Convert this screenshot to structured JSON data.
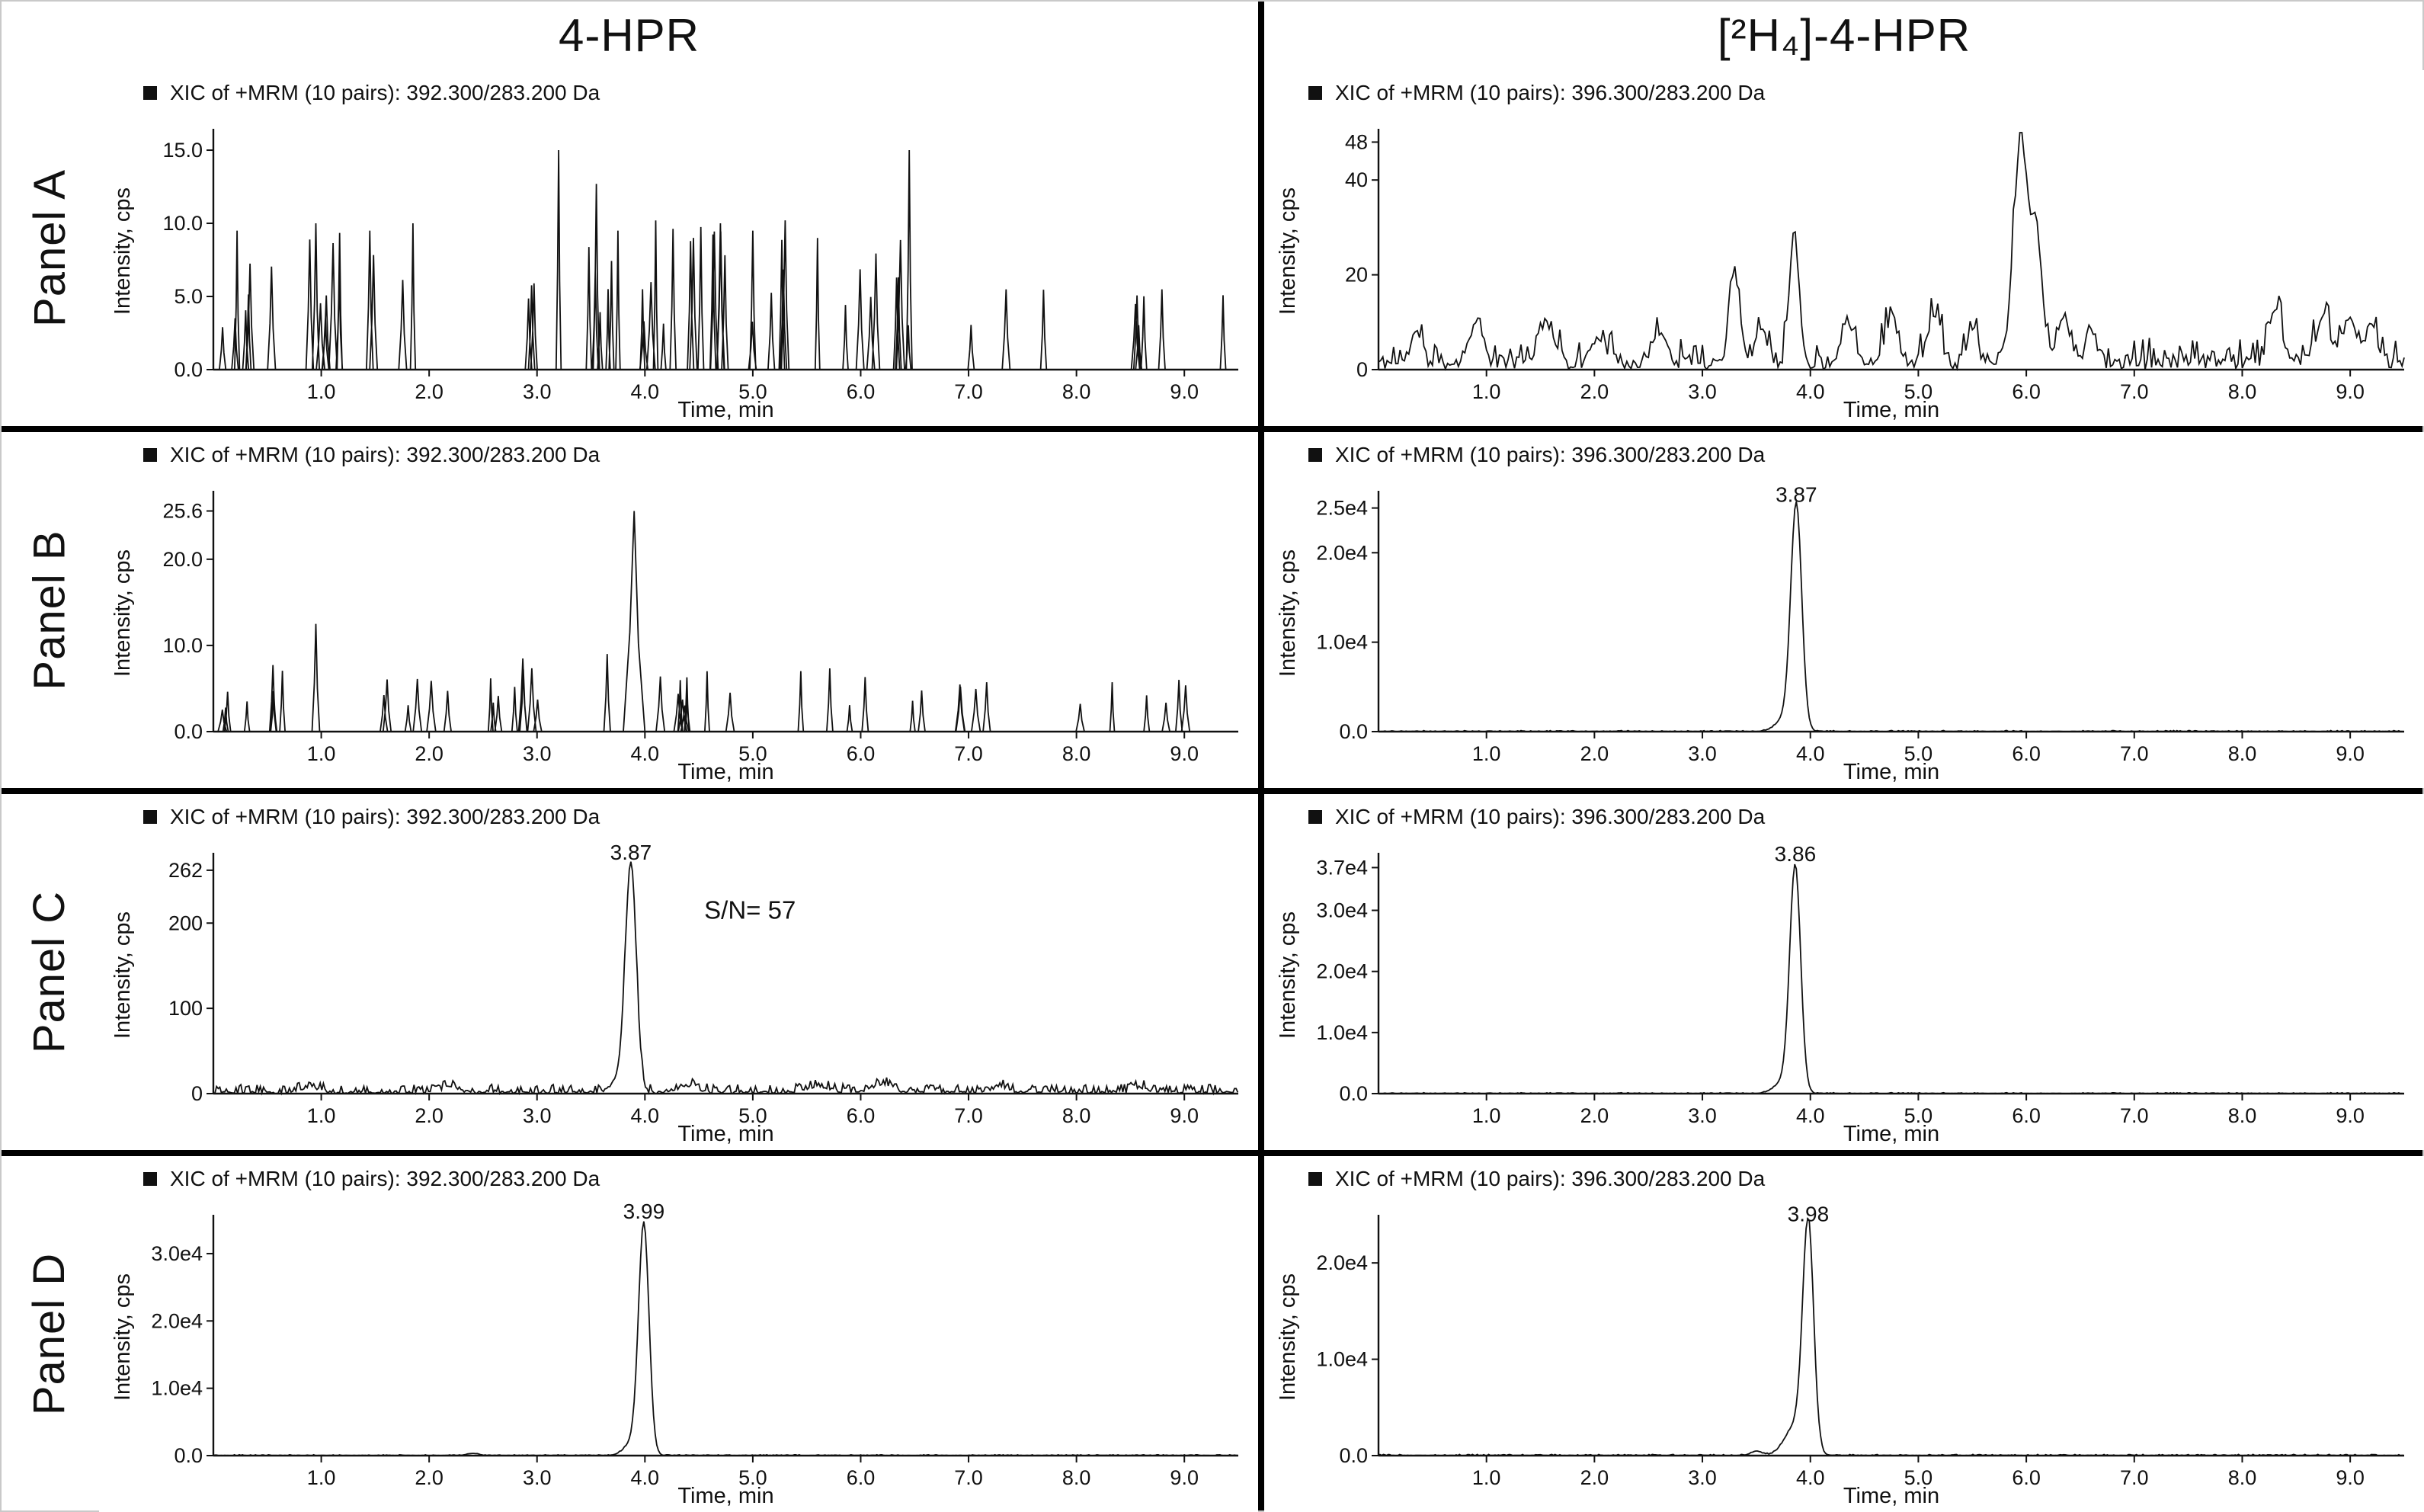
{
  "figure": {
    "columns": [
      "4-HPR",
      "[²H₄]-4-HPR"
    ],
    "panel_labels": [
      "Panel A",
      "Panel B",
      "Panel C",
      "Panel D"
    ],
    "trace_color": "#111111",
    "divider_color": "#000000"
  },
  "chart_data": [
    {
      "panel": "Panel A",
      "column": "4-HPR",
      "type": "line",
      "title": "XIC of +MRM (10 pairs): 392.300/283.200 Da",
      "xlabel": "Time, min",
      "ylabel": "Intensity, cps",
      "xlim": [
        0,
        9.5
      ],
      "ylim": [
        0,
        16.2
      ],
      "x_ticks": {
        "values": [
          1,
          2,
          3,
          4,
          5,
          6,
          7,
          8,
          9
        ],
        "labels": [
          "1.0",
          "2.0",
          "3.0",
          "4.0",
          "5.0",
          "6.0",
          "7.0",
          "8.0",
          "9.0"
        ]
      },
      "y_ticks": {
        "values": [
          0,
          5,
          10,
          15
        ],
        "labels": [
          "0.0",
          "5.0",
          "10.0",
          "15.0"
        ]
      },
      "trace": {
        "kind": "spikes",
        "seed": 7,
        "default_width": 0.028,
        "segments": [
          {
            "x0": 0.08,
            "x1": 0.55,
            "count": 6,
            "hmin": 2.5,
            "hmax": 9
          },
          {
            "x0": 0.8,
            "x1": 2.05,
            "count": 9,
            "hmin": 2.5,
            "hmax": 9.5
          },
          {
            "x0": 2.7,
            "x1": 3.1,
            "count": 3,
            "hmin": 3,
            "hmax": 6
          },
          {
            "x0": 3.3,
            "x1": 5.35,
            "count": 20,
            "hmin": 3,
            "hmax": 10
          },
          {
            "x0": 5.5,
            "x1": 6.65,
            "count": 8,
            "hmin": 3,
            "hmax": 9
          },
          {
            "x0": 7.0,
            "x1": 9.5,
            "count": 9,
            "hmin": 3,
            "hmax": 5.5
          }
        ],
        "majors": [
          [
            0.22,
            9.5
          ],
          [
            0.95,
            10
          ],
          [
            1.45,
            9.5
          ],
          [
            1.85,
            10
          ],
          [
            3.2,
            15
          ],
          [
            3.55,
            12.7
          ],
          [
            3.75,
            9.5
          ],
          [
            4.1,
            10.2
          ],
          [
            4.45,
            9
          ],
          [
            4.7,
            10
          ],
          [
            5.0,
            9.5
          ],
          [
            5.3,
            10.2
          ],
          [
            5.6,
            9
          ],
          [
            6.45,
            15
          ]
        ]
      },
      "peak_labels": [],
      "annotations": []
    },
    {
      "panel": "Panel A",
      "column": "[²H₄]-4-HPR",
      "type": "line",
      "title": "XIC of +MRM (10 pairs): 396.300/283.200 Da",
      "xlabel": "Time, min",
      "ylabel": "Intensity, cps",
      "xlim": [
        0,
        9.5
      ],
      "ylim": [
        0,
        50
      ],
      "x_ticks": {
        "values": [
          1,
          2,
          3,
          4,
          5,
          6,
          7,
          8,
          9
        ],
        "labels": [
          "1.0",
          "2.0",
          "3.0",
          "4.0",
          "5.0",
          "6.0",
          "7.0",
          "8.0",
          "9.0"
        ]
      },
      "y_ticks": {
        "values": [
          0,
          20,
          40,
          48
        ],
        "labels": [
          "0",
          "20",
          "40",
          "48"
        ]
      },
      "trace": {
        "kind": "noisy",
        "seed": 11,
        "noise": 7,
        "step": 0.02,
        "bumps": [
          [
            0.35,
            6,
            0.05
          ],
          [
            0.9,
            9,
            0.06
          ],
          [
            1.55,
            9,
            0.07
          ],
          [
            2.05,
            6,
            0.06
          ],
          [
            2.6,
            7,
            0.06
          ],
          [
            3.3,
            19,
            0.05
          ],
          [
            3.55,
            8,
            0.05
          ],
          [
            3.85,
            27,
            0.045
          ],
          [
            4.35,
            9,
            0.06
          ],
          [
            4.75,
            10,
            0.06
          ],
          [
            5.15,
            10,
            0.06
          ],
          [
            5.5,
            8,
            0.05
          ],
          [
            5.95,
            46,
            0.07
          ],
          [
            6.1,
            25,
            0.05
          ],
          [
            6.35,
            10,
            0.06
          ],
          [
            6.6,
            7,
            0.05
          ],
          [
            8.3,
            12,
            0.06
          ],
          [
            8.75,
            9,
            0.07
          ],
          [
            9.0,
            10,
            0.06
          ],
          [
            9.2,
            8,
            0.05
          ]
        ]
      },
      "peak_labels": [],
      "annotations": []
    },
    {
      "panel": "Panel B",
      "column": "4-HPR",
      "type": "line",
      "title": "XIC of +MRM (10 pairs): 392.300/283.200 Da",
      "xlabel": "Time, min",
      "ylabel": "Intensity, cps",
      "xlim": [
        0,
        9.5
      ],
      "ylim": [
        0,
        27.5
      ],
      "x_ticks": {
        "values": [
          1,
          2,
          3,
          4,
          5,
          6,
          7,
          8,
          9
        ],
        "labels": [
          "1.0",
          "2.0",
          "3.0",
          "4.0",
          "5.0",
          "6.0",
          "7.0",
          "8.0",
          "9.0"
        ]
      },
      "y_ticks": {
        "values": [
          0,
          10,
          20,
          25.6
        ],
        "labels": [
          "0.0",
          "10.0",
          "20.0",
          "25.6"
        ]
      },
      "trace": {
        "kind": "spikes",
        "seed": 13,
        "default_width": 0.03,
        "segments": [
          {
            "x0": 0.05,
            "x1": 0.95,
            "count": 8,
            "hmin": 2.5,
            "hmax": 8.5
          },
          {
            "x0": 1.5,
            "x1": 2.4,
            "count": 6,
            "hmin": 2.5,
            "hmax": 8
          },
          {
            "x0": 2.55,
            "x1": 3.65,
            "count": 8,
            "hmin": 3,
            "hmax": 9
          },
          {
            "x0": 4.05,
            "x1": 6.05,
            "count": 13,
            "hmin": 2.5,
            "hmax": 7.5
          },
          {
            "x0": 6.2,
            "x1": 7.55,
            "count": 6,
            "hmin": 2.5,
            "hmax": 6
          },
          {
            "x0": 7.9,
            "x1": 9.1,
            "count": 5,
            "hmin": 3,
            "hmax": 6
          }
        ],
        "majors": [
          [
            0.95,
            12.5,
            0.035
          ],
          [
            3.9,
            25.6,
            0.1
          ],
          [
            3.65,
            9,
            0.03
          ],
          [
            8.95,
            6,
            0.03
          ]
        ]
      },
      "peak_labels": [],
      "annotations": []
    },
    {
      "panel": "Panel B",
      "column": "[²H₄]-4-HPR",
      "type": "line",
      "title": "XIC of +MRM (10 pairs): 396.300/283.200 Da",
      "xlabel": "Time, min",
      "ylabel": "Intensity, cps",
      "xlim": [
        0,
        9.5
      ],
      "ylim": [
        0,
        26500
      ],
      "x_ticks": {
        "values": [
          1,
          2,
          3,
          4,
          5,
          6,
          7,
          8,
          9
        ],
        "labels": [
          "1.0",
          "2.0",
          "3.0",
          "4.0",
          "5.0",
          "6.0",
          "7.0",
          "8.0",
          "9.0"
        ]
      },
      "y_ticks": {
        "values": [
          0,
          10000,
          20000,
          25000
        ],
        "labels": [
          "0.0",
          "1.0e4",
          "2.0e4",
          "2.5e4"
        ]
      },
      "trace": {
        "kind": "peaks",
        "seed": 3,
        "noise": 120,
        "step": 0.015,
        "gaussians": [
          [
            3.87,
            24500,
            0.05
          ],
          [
            3.79,
            1800,
            0.09
          ]
        ]
      },
      "peak_labels": [
        {
          "x": 3.87,
          "y": 24500,
          "label": "3.87"
        }
      ],
      "annotations": []
    },
    {
      "panel": "Panel C",
      "column": "4-HPR",
      "type": "line",
      "title": "XIC of +MRM (10 pairs): 392.300/283.200 Da",
      "xlabel": "Time, min",
      "ylabel": "Intensity, cps",
      "xlim": [
        0,
        9.5
      ],
      "ylim": [
        0,
        278
      ],
      "x_ticks": {
        "values": [
          1,
          2,
          3,
          4,
          5,
          6,
          7,
          8,
          9
        ],
        "labels": [
          "1.0",
          "2.0",
          "3.0",
          "4.0",
          "5.0",
          "6.0",
          "7.0",
          "8.0",
          "9.0"
        ]
      },
      "y_ticks": {
        "values": [
          0,
          100,
          200,
          262
        ],
        "labels": [
          "0",
          "100",
          "200",
          "262"
        ]
      },
      "trace": {
        "kind": "peaks",
        "seed": 17,
        "noise": 11,
        "step": 0.015,
        "gaussians": [
          [
            3.87,
            262,
            0.05
          ],
          [
            3.78,
            18,
            0.08
          ],
          [
            0.9,
            6,
            0.08
          ],
          [
            2.2,
            7,
            0.07
          ],
          [
            4.4,
            8,
            0.09
          ],
          [
            5.6,
            7,
            0.1
          ],
          [
            6.2,
            10,
            0.09
          ],
          [
            7.3,
            6,
            0.07
          ],
          [
            8.6,
            5,
            0.07
          ]
        ]
      },
      "peak_labels": [
        {
          "x": 3.87,
          "y": 262,
          "label": "3.87"
        }
      ],
      "annotations": [
        {
          "x": 4.55,
          "y": 205,
          "label": "S/N= 57"
        }
      ]
    },
    {
      "panel": "Panel C",
      "column": "[²H₄]-4-HPR",
      "type": "line",
      "title": "XIC of +MRM (10 pairs): 396.300/283.200 Da",
      "xlabel": "Time, min",
      "ylabel": "Intensity, cps",
      "xlim": [
        0,
        9.5
      ],
      "ylim": [
        0,
        38800
      ],
      "x_ticks": {
        "values": [
          1,
          2,
          3,
          4,
          5,
          6,
          7,
          8,
          9
        ],
        "labels": [
          "1.0",
          "2.0",
          "3.0",
          "4.0",
          "5.0",
          "6.0",
          "7.0",
          "8.0",
          "9.0"
        ]
      },
      "y_ticks": {
        "values": [
          0,
          10000,
          20000,
          30000,
          37000
        ],
        "labels": [
          "0.0",
          "1.0e4",
          "2.0e4",
          "3.0e4",
          "3.7e4"
        ]
      },
      "trace": {
        "kind": "peaks",
        "seed": 3,
        "noise": 150,
        "step": 0.015,
        "gaussians": [
          [
            3.86,
            36300,
            0.05
          ],
          [
            3.77,
            2200,
            0.09
          ]
        ]
      },
      "peak_labels": [
        {
          "x": 3.86,
          "y": 36300,
          "label": "3.86"
        }
      ],
      "annotations": []
    },
    {
      "panel": "Panel D",
      "column": "4-HPR",
      "type": "line",
      "title": "XIC of +MRM (10 pairs): 392.300/283.200 Da",
      "xlabel": "Time, min",
      "ylabel": "Intensity, cps",
      "xlim": [
        0,
        9.5
      ],
      "ylim": [
        0,
        35200
      ],
      "x_ticks": {
        "values": [
          1,
          2,
          3,
          4,
          5,
          6,
          7,
          8,
          9
        ],
        "labels": [
          "1.0",
          "2.0",
          "3.0",
          "4.0",
          "5.0",
          "6.0",
          "7.0",
          "8.0",
          "9.0"
        ]
      },
      "y_ticks": {
        "values": [
          0,
          10000,
          20000,
          30000
        ],
        "labels": [
          "0.0",
          "1.0e4",
          "2.0e4",
          "3.0e4"
        ]
      },
      "trace": {
        "kind": "peaks",
        "seed": 5,
        "noise": 130,
        "step": 0.015,
        "gaussians": [
          [
            3.99,
            33600,
            0.048
          ],
          [
            3.9,
            2200,
            0.08
          ],
          [
            2.4,
            320,
            0.05
          ]
        ]
      },
      "peak_labels": [
        {
          "x": 3.99,
          "y": 33600,
          "label": "3.99"
        }
      ],
      "annotations": []
    },
    {
      "panel": "Panel D",
      "column": "[²H₄]-4-HPR",
      "type": "line",
      "title": "XIC of +MRM (10 pairs): 396.300/283.200 Da",
      "xlabel": "Time, min",
      "ylabel": "Intensity, cps",
      "xlim": [
        0,
        9.5
      ],
      "ylim": [
        0,
        24600
      ],
      "x_ticks": {
        "values": [
          1,
          2,
          3,
          4,
          5,
          6,
          7,
          8,
          9
        ],
        "labels": [
          "1.0",
          "2.0",
          "3.0",
          "4.0",
          "5.0",
          "6.0",
          "7.0",
          "8.0",
          "9.0"
        ]
      },
      "y_ticks": {
        "values": [
          0,
          10000,
          20000
        ],
        "labels": [
          "0.0",
          "1.0e4",
          "2.0e4"
        ]
      },
      "trace": {
        "kind": "peaks",
        "seed": 9,
        "noise": 130,
        "step": 0.015,
        "gaussians": [
          [
            3.98,
            23200,
            0.05
          ],
          [
            3.87,
            3200,
            0.1
          ],
          [
            3.5,
            450,
            0.05
          ]
        ]
      },
      "peak_labels": [
        {
          "x": 3.98,
          "y": 23200,
          "label": "3.98"
        }
      ],
      "annotations": []
    }
  ]
}
